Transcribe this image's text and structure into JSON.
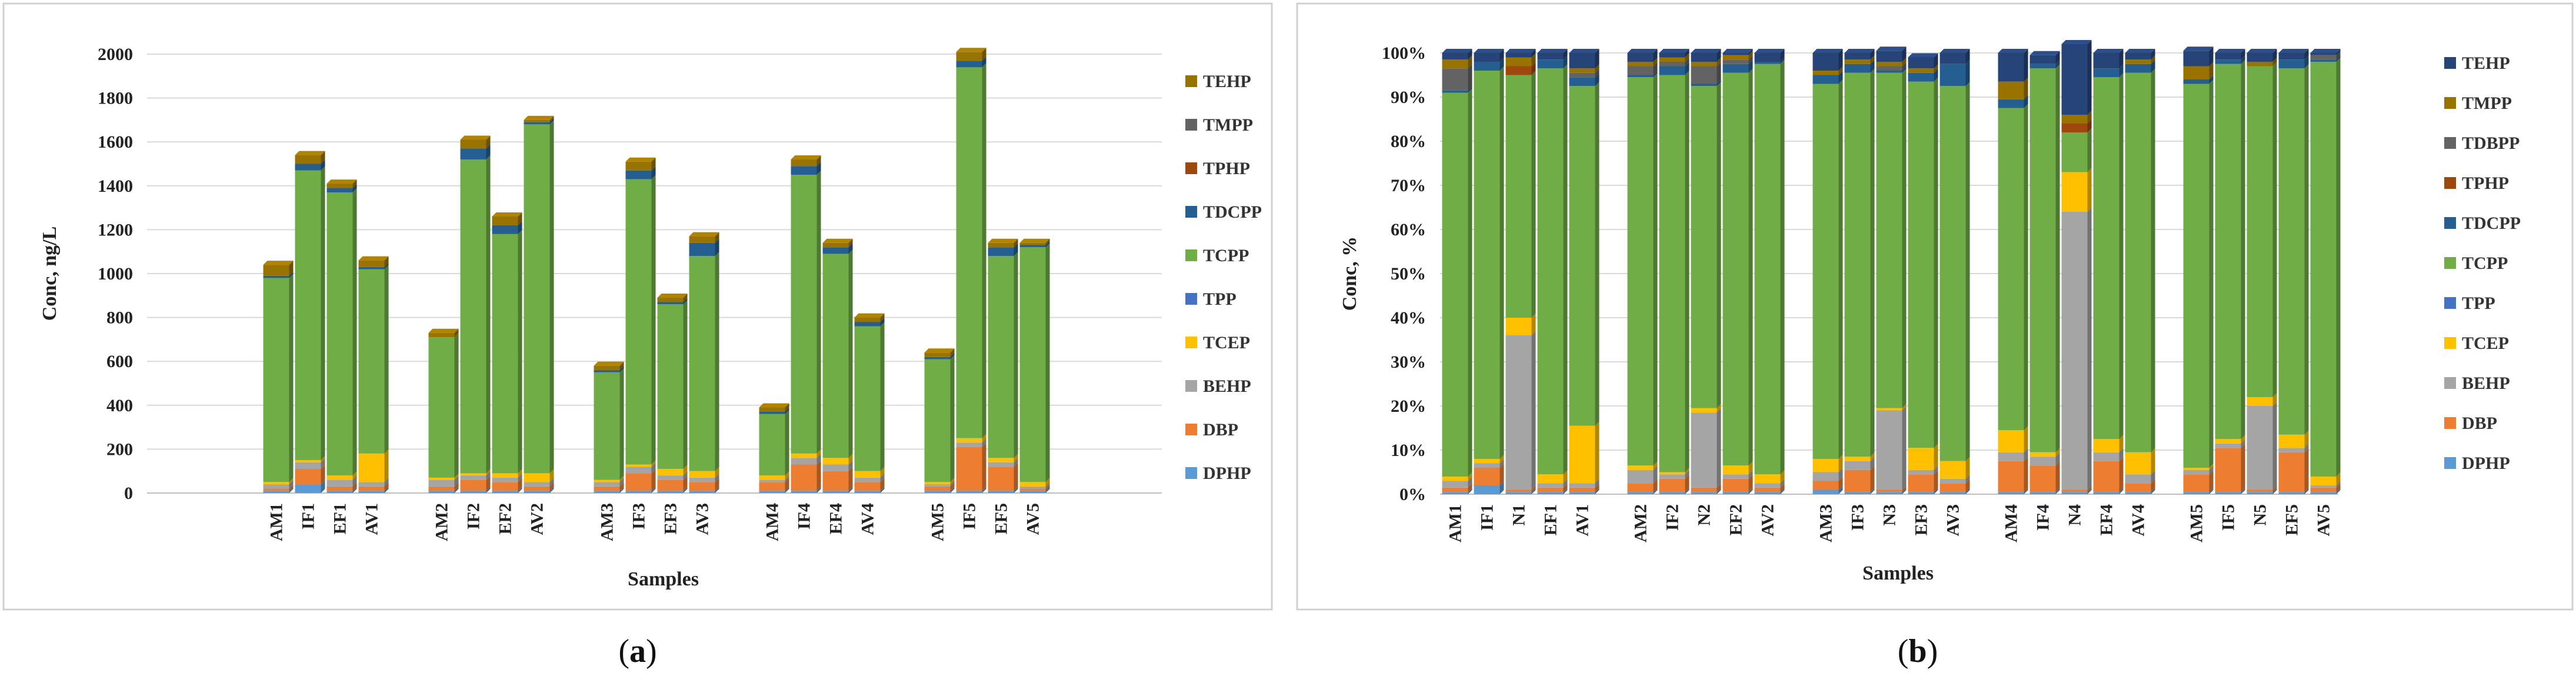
{
  "panels": {
    "a": {
      "caption_open": "(",
      "caption_letter": "a",
      "caption_close": ")"
    },
    "b": {
      "caption_open": "(",
      "caption_letter": "b",
      "caption_close": ")"
    }
  },
  "chart_data": [
    {
      "id": "a",
      "type": "bar",
      "stacked": true,
      "title": "",
      "xlabel": "Samples",
      "ylabel": "Conc, ng/L",
      "ylim": [
        0,
        2000
      ],
      "yticks": [
        0,
        200,
        400,
        600,
        800,
        1000,
        1200,
        1400,
        1600,
        1800,
        2000
      ],
      "ytick_labels": [
        "0",
        "200",
        "400",
        "600",
        "800",
        "1000",
        "1200",
        "1400",
        "1600",
        "1800",
        "2000"
      ],
      "groups": [
        [
          "AM1",
          "IF1",
          "EF1",
          "AV1"
        ],
        [
          "AM2",
          "IF2",
          "EF2",
          "AV2"
        ],
        [
          "AM3",
          "IF3",
          "EF3",
          "AV3"
        ],
        [
          "AM4",
          "IF4",
          "EF4",
          "AV4"
        ],
        [
          "AM5",
          "IF5",
          "EF5",
          "AV5"
        ]
      ],
      "categories": [
        "AM1",
        "IF1",
        "EF1",
        "AV1",
        "AM2",
        "IF2",
        "EF2",
        "AV2",
        "AM3",
        "IF3",
        "EF3",
        "AV3",
        "AM4",
        "IF4",
        "EF4",
        "AV4",
        "AM5",
        "IF5",
        "EF5",
        "AV5"
      ],
      "colors": {
        "DPHP": "#5b9bd5",
        "DBP": "#ed7d31",
        "BEHP": "#a5a5a5",
        "TCEP": "#ffc000",
        "TPP": "#4472c4",
        "TCPP": "#70ad47",
        "TDCPP": "#255e91",
        "TPHP": "#9e480e",
        "TMPP": "#636363",
        "TEHP": "#997300"
      },
      "series": [
        {
          "name": "DPHP",
          "values": [
            10,
            40,
            10,
            10,
            10,
            10,
            10,
            10,
            10,
            10,
            10,
            10,
            10,
            10,
            10,
            10,
            10,
            10,
            10,
            10
          ]
        },
        {
          "name": "DBP",
          "values": [
            10,
            70,
            20,
            20,
            20,
            50,
            40,
            20,
            20,
            80,
            50,
            40,
            40,
            120,
            90,
            40,
            20,
            200,
            110,
            10
          ]
        },
        {
          "name": "BEHP",
          "values": [
            20,
            30,
            30,
            20,
            30,
            20,
            20,
            20,
            20,
            30,
            20,
            20,
            10,
            30,
            30,
            20,
            10,
            20,
            20,
            10
          ]
        },
        {
          "name": "TCEP",
          "values": [
            10,
            10,
            20,
            130,
            10,
            10,
            20,
            40,
            10,
            10,
            30,
            30,
            20,
            20,
            30,
            30,
            10,
            20,
            20,
            20
          ]
        },
        {
          "name": "TPP",
          "values": [
            0,
            0,
            0,
            0,
            0,
            0,
            0,
            0,
            0,
            0,
            0,
            0,
            0,
            0,
            0,
            0,
            0,
            0,
            0,
            0
          ]
        },
        {
          "name": "TCPP",
          "values": [
            930,
            1320,
            1290,
            840,
            640,
            1430,
            1090,
            1590,
            490,
            1300,
            750,
            980,
            280,
            1270,
            930,
            660,
            560,
            1690,
            920,
            1070
          ]
        },
        {
          "name": "TDCPP",
          "values": [
            10,
            30,
            20,
            10,
            0,
            50,
            40,
            10,
            10,
            40,
            10,
            60,
            10,
            40,
            30,
            20,
            10,
            30,
            40,
            10
          ]
        },
        {
          "name": "TPHP",
          "values": [
            0,
            0,
            0,
            0,
            0,
            0,
            0,
            0,
            0,
            0,
            0,
            0,
            0,
            0,
            0,
            0,
            0,
            0,
            0,
            0
          ]
        },
        {
          "name": "TMPP",
          "values": [
            0,
            0,
            0,
            0,
            0,
            0,
            0,
            0,
            0,
            0,
            0,
            0,
            0,
            0,
            0,
            0,
            0,
            0,
            0,
            0
          ]
        },
        {
          "name": "TEHP",
          "values": [
            50,
            40,
            20,
            30,
            20,
            40,
            40,
            10,
            20,
            40,
            20,
            30,
            20,
            30,
            20,
            20,
            20,
            40,
            20,
            10
          ]
        }
      ],
      "legend": [
        "TEHP",
        "TMPP",
        "TPHP",
        "TDCPP",
        "TCPP",
        "TPP",
        "TCEP",
        "BEHP",
        "DBP",
        "DPHP"
      ],
      "legend_position": "right"
    },
    {
      "id": "b",
      "type": "bar",
      "stacked": true,
      "percent": true,
      "title": "",
      "xlabel": "Samples",
      "ylabel": "Conc, %",
      "ylim": [
        0,
        100
      ],
      "yticks": [
        0,
        10,
        20,
        30,
        40,
        50,
        60,
        70,
        80,
        90,
        100
      ],
      "ytick_labels": [
        "0%",
        "10%",
        "20%",
        "30%",
        "40%",
        "50%",
        "60%",
        "70%",
        "80%",
        "90%",
        "100%"
      ],
      "groups": [
        [
          "AM1",
          "IF1",
          "N1",
          "EF1",
          "AV1"
        ],
        [
          "AM2",
          "IF2",
          "N2",
          "EF2",
          "AV2"
        ],
        [
          "AM3",
          "IF3",
          "N3",
          "EF3",
          "AV3"
        ],
        [
          "AM4",
          "IF4",
          "N4",
          "EF4",
          "AV4"
        ],
        [
          "AM5",
          "IF5",
          "N5",
          "EF5",
          "AV5"
        ]
      ],
      "categories": [
        "AM1",
        "IF1",
        "N1",
        "EF1",
        "AV1",
        "AM2",
        "IF2",
        "N2",
        "EF2",
        "AV2",
        "AM3",
        "IF3",
        "N3",
        "EF3",
        "AV3",
        "AM4",
        "IF4",
        "N4",
        "EF4",
        "AV4",
        "AM5",
        "IF5",
        "N5",
        "EF5",
        "AV5"
      ],
      "colors": {
        "DPHP": "#5b9bd5",
        "DBP": "#ed7d31",
        "BEHP": "#a5a5a5",
        "TCEP": "#ffc000",
        "TPP": "#4472c4",
        "TCPP": "#70ad47",
        "TDCPP": "#255e91",
        "TPHP": "#9e480e",
        "TDBPP": "#636363",
        "TMPP": "#997300",
        "TEHP": "#264478"
      },
      "series": [
        {
          "name": "DPHP",
          "values": [
            0.5,
            2,
            0.5,
            0.5,
            0.5,
            0.5,
            0.5,
            0.5,
            0.5,
            0.5,
            1,
            0.5,
            0.5,
            0.5,
            0.5,
            0.5,
            0.5,
            0.5,
            0.5,
            0.5,
            0.5,
            0.5,
            0.5,
            0.5,
            0.5
          ]
        },
        {
          "name": "DBP",
          "values": [
            1,
            4,
            0.5,
            1,
            1,
            2,
            3,
            1,
            3,
            1,
            2,
            5,
            0.5,
            4,
            2,
            7,
            6,
            0.5,
            7,
            2,
            4,
            10,
            0.5,
            9,
            1
          ]
        },
        {
          "name": "BEHP",
          "values": [
            1.5,
            1,
            35,
            1,
            1,
            3,
            1,
            17,
            1,
            1,
            2,
            2,
            18,
            1,
            1,
            2,
            2,
            63,
            2,
            2,
            1,
            1,
            19,
            1,
            0.5
          ]
        },
        {
          "name": "TCEP",
          "values": [
            1,
            1,
            4,
            2,
            13,
            1,
            0.5,
            1,
            2,
            2,
            3,
            1,
            0.5,
            5,
            4,
            5,
            1,
            9,
            3,
            5,
            0.5,
            1,
            2,
            3,
            2
          ]
        },
        {
          "name": "TPP",
          "values": [
            0,
            0,
            0,
            0,
            0,
            0,
            0,
            0,
            0,
            0,
            0,
            0,
            0,
            0,
            0,
            0,
            0,
            0,
            0,
            0,
            0,
            0,
            0,
            0,
            0
          ]
        },
        {
          "name": "TCPP",
          "values": [
            87,
            88,
            55,
            92,
            77,
            88,
            90,
            73,
            89,
            93,
            85,
            87,
            76,
            83,
            85,
            73,
            87,
            9,
            82,
            86,
            87,
            85,
            75,
            83,
            94
          ]
        },
        {
          "name": "TDCPP",
          "values": [
            0.5,
            2,
            0,
            2,
            2,
            0.5,
            2,
            0.5,
            2,
            0.5,
            2,
            2,
            0.5,
            2,
            5,
            2,
            1,
            0,
            2,
            2,
            1,
            1,
            0,
            2,
            0.5
          ]
        },
        {
          "name": "TPHP",
          "values": [
            0,
            0,
            2,
            0,
            0,
            0,
            0,
            0,
            0,
            0,
            0,
            0,
            0,
            0,
            0,
            0,
            0,
            2,
            0,
            0,
            0,
            0,
            0,
            0,
            0
          ]
        },
        {
          "name": "TDBPP",
          "values": [
            5,
            0,
            0,
            0,
            1,
            2,
            1,
            4,
            1,
            0,
            0,
            0,
            1,
            0,
            0,
            0,
            0,
            0,
            0,
            0,
            0,
            0,
            0,
            0,
            1
          ]
        },
        {
          "name": "TMPP",
          "values": [
            2,
            0,
            2,
            0,
            1,
            1,
            1,
            1,
            1,
            0,
            1,
            1,
            1,
            1,
            0,
            4,
            0,
            2,
            0,
            1,
            3,
            0,
            1,
            0,
            0
          ]
        },
        {
          "name": "TEHP",
          "values": [
            1.5,
            2,
            1,
            1.5,
            3.5,
            2,
            1,
            2,
            0.5,
            2,
            4,
            1.5,
            2.5,
            2.5,
            2.5,
            6.5,
            2,
            16,
            3.5,
            1.5,
            3.5,
            1.5,
            2,
            1.5,
            0.5
          ]
        }
      ],
      "legend": [
        "TEHP",
        "TMPP",
        "TDBPP",
        "TPHP",
        "TDCPP",
        "TCPP",
        "TPP",
        "TCEP",
        "BEHP",
        "DBP",
        "DPHP"
      ],
      "legend_position": "right"
    }
  ]
}
